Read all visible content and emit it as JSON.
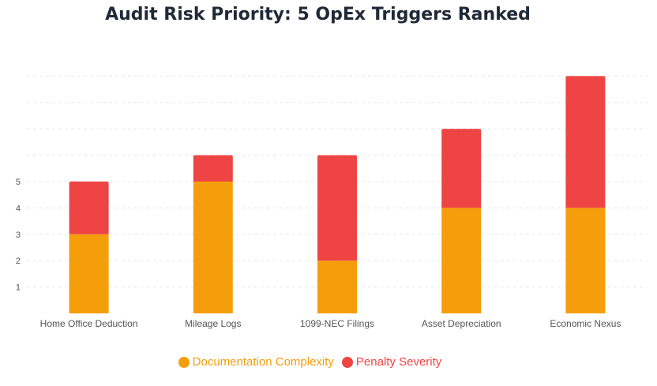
{
  "chart_data": {
    "type": "bar",
    "stacked": true,
    "title": "Audit Risk Priority: 5 OpEx Triggers Ranked",
    "xlabel": "",
    "ylabel": "",
    "categories": [
      "Home Office Deduction",
      "Mileage Logs",
      "1099-NEC Filings",
      "Asset Depreciation",
      "Economic Nexus"
    ],
    "series": [
      {
        "name": "Documentation Complexity",
        "color": "#f59e0b",
        "values": [
          3,
          5,
          2,
          4,
          4
        ]
      },
      {
        "name": "Penalty Severity",
        "color": "#ef4444",
        "values": [
          2,
          1,
          4,
          3,
          5
        ]
      }
    ],
    "yticks": [
      1,
      2,
      3,
      4,
      5
    ],
    "ylim": [
      0,
      9
    ],
    "grid": true,
    "legend": "bottom"
  }
}
